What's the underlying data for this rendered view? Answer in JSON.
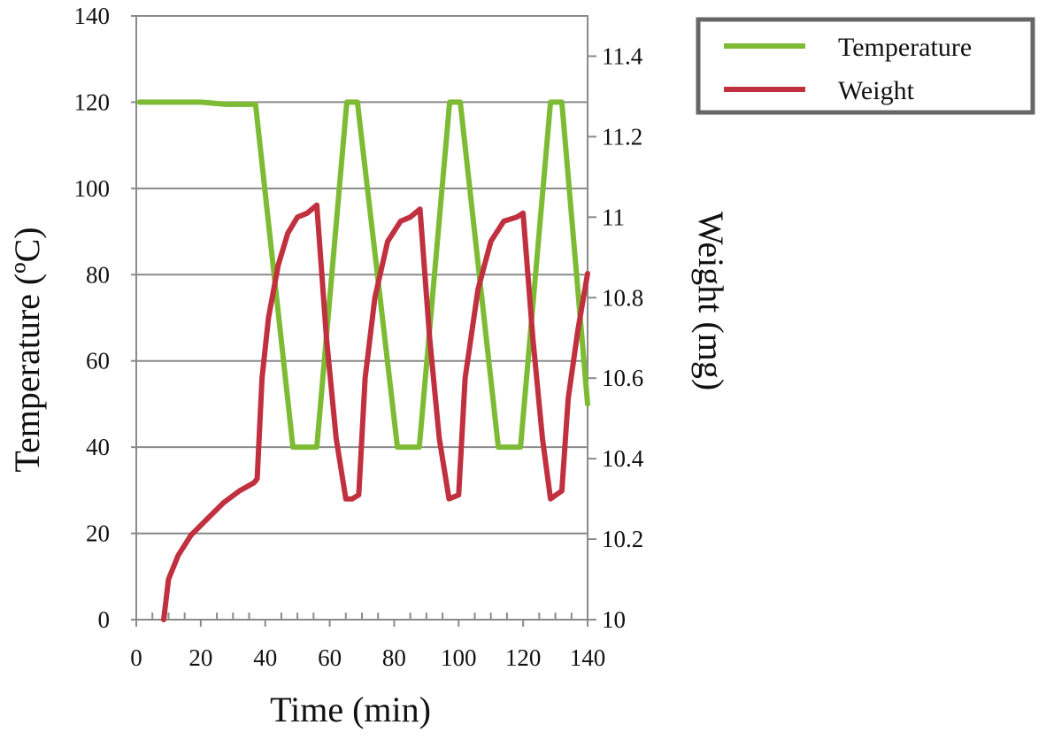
{
  "chart_data": {
    "type": "line",
    "title": "",
    "xlabel": "Time (min)",
    "ylabel": "Temperature (ºC)",
    "y2label": "Weight (mg)",
    "xlim": [
      0,
      140
    ],
    "ylim": [
      0,
      140
    ],
    "y2lim": [
      10,
      11.5
    ],
    "xticks": [
      "0",
      "20",
      "40",
      "60",
      "80",
      "100",
      "120",
      "140"
    ],
    "yticks": [
      "0",
      "20",
      "40",
      "60",
      "80",
      "100",
      "120",
      "140"
    ],
    "y2ticks": [
      "10",
      "10.2",
      "10.4",
      "10.6",
      "10.8",
      "11",
      "11.2",
      "11.4"
    ],
    "grid": "horizontal",
    "legend_position": "top-right",
    "series": [
      {
        "name": "Temperature",
        "axis": "left",
        "color": "#7dbb35",
        "points": [
          [
            1,
            120
          ],
          [
            20,
            120
          ],
          [
            28,
            119.5
          ],
          [
            37,
            119.5
          ],
          [
            48.6,
            40
          ],
          [
            56,
            40
          ],
          [
            65.3,
            120
          ],
          [
            68.6,
            120
          ],
          [
            81,
            40
          ],
          [
            87.8,
            40
          ],
          [
            97.2,
            120
          ],
          [
            100.5,
            120
          ],
          [
            112.3,
            40
          ],
          [
            119.2,
            40
          ],
          [
            128.5,
            120
          ],
          [
            132,
            120
          ],
          [
            140,
            50
          ]
        ]
      },
      {
        "name": "Weight",
        "axis": "right",
        "color": "#c0303f",
        "points": [
          [
            8.5,
            10.0
          ],
          [
            10,
            10.1
          ],
          [
            13,
            10.16
          ],
          [
            17,
            10.21
          ],
          [
            22,
            10.25
          ],
          [
            27,
            10.29
          ],
          [
            32,
            10.32
          ],
          [
            36.5,
            10.34
          ],
          [
            37.5,
            10.35
          ],
          [
            39,
            10.6
          ],
          [
            41,
            10.75
          ],
          [
            44,
            10.88
          ],
          [
            47,
            10.96
          ],
          [
            50,
            11.0
          ],
          [
            53,
            11.01
          ],
          [
            56,
            11.03
          ],
          [
            59,
            10.7
          ],
          [
            62,
            10.45
          ],
          [
            65,
            10.3
          ],
          [
            67,
            10.3
          ],
          [
            69,
            10.31
          ],
          [
            71,
            10.6
          ],
          [
            74,
            10.8
          ],
          [
            78,
            10.94
          ],
          [
            82,
            10.99
          ],
          [
            85,
            11.0
          ],
          [
            88,
            11.02
          ],
          [
            91,
            10.7
          ],
          [
            94,
            10.45
          ],
          [
            97,
            10.3
          ],
          [
            100,
            10.31
          ],
          [
            102,
            10.6
          ],
          [
            106,
            10.82
          ],
          [
            110,
            10.94
          ],
          [
            114,
            10.99
          ],
          [
            118,
            11.0
          ],
          [
            120,
            11.01
          ],
          [
            123,
            10.7
          ],
          [
            126,
            10.45
          ],
          [
            128.5,
            10.3
          ],
          [
            132,
            10.32
          ],
          [
            134,
            10.55
          ],
          [
            137,
            10.72
          ],
          [
            140,
            10.86
          ]
        ]
      }
    ]
  }
}
